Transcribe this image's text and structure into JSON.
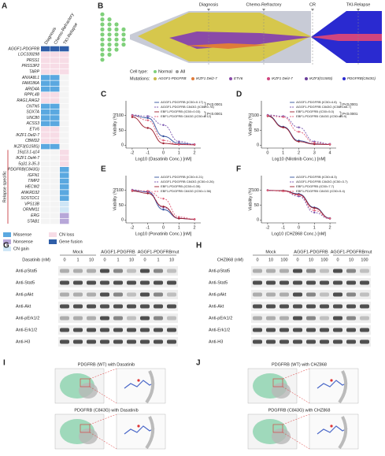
{
  "panels": {
    "A": {
      "label": "A",
      "columns": [
        "Diagnosis",
        "Chemo-Refractory",
        "TKI-Relapse"
      ],
      "rows": [
        {
          "gene": "AGGF1-PDGFRB",
          "color": "#c0272d",
          "cells": [
            4,
            4,
            4
          ]
        },
        {
          "gene": "LOC339298",
          "color": "#222222",
          "cells": [
            3,
            3,
            3
          ]
        },
        {
          "gene": "PRSS1",
          "color": "#222222",
          "cells": [
            3,
            3,
            3
          ]
        },
        {
          "gene": "PRSS3P2",
          "color": "#222222",
          "cells": [
            3,
            3,
            3
          ]
        },
        {
          "gene": "TARP",
          "color": "#222222",
          "cells": [
            3,
            3,
            3
          ]
        },
        {
          "gene": "ANXA8L1",
          "color": "#222222",
          "cells": [
            0,
            0,
            null
          ]
        },
        {
          "gene": "FAM186A",
          "color": "#222222",
          "cells": [
            0,
            0,
            null
          ]
        },
        {
          "gene": "ARID4A",
          "color": "#222222",
          "cells": [
            0,
            0,
            null
          ]
        },
        {
          "gene": "RPPL4B",
          "color": "#222222",
          "cells": [
            3,
            3,
            null
          ]
        },
        {
          "gene": "RAG1,RAG2",
          "color": "#222222",
          "cells": [
            3,
            3,
            null
          ]
        },
        {
          "gene": "CNTN5",
          "color": "#222222",
          "cells": [
            0,
            0,
            null
          ]
        },
        {
          "gene": "SOX7A",
          "color": "#222222",
          "cells": [
            0,
            0,
            null
          ]
        },
        {
          "gene": "UNC80",
          "color": "#222222",
          "cells": [
            0,
            0,
            null
          ]
        },
        {
          "gene": "ACSS3",
          "color": "#222222",
          "cells": [
            0,
            0,
            null
          ]
        },
        {
          "gene": "ETV6",
          "color": "#c0272d",
          "cells": [
            3,
            3,
            null
          ]
        },
        {
          "gene": "IKZF1 Del2-7",
          "color": "#c0272d",
          "cells": [
            3,
            3,
            null
          ]
        },
        {
          "gene": "CBWD2",
          "color": "#222222",
          "cells": [
            3,
            3,
            null
          ]
        },
        {
          "gene": "IKZF3(G158S)",
          "color": "#c0272d",
          "cells": [
            0,
            0,
            null
          ]
        },
        {
          "gene": "15q13.1-q14",
          "color": "#222222",
          "cells": [
            null,
            null,
            3
          ]
        },
        {
          "gene": "IKZF1 Del4-7",
          "color": "#c0272d",
          "cells": [
            null,
            null,
            3
          ]
        },
        {
          "gene": "5q31.3-35.3",
          "color": "#c0272d",
          "cells": [
            null,
            null,
            3
          ]
        },
        {
          "gene": "PDGFRB(C843G)",
          "color": "#c0272d",
          "cells": [
            null,
            null,
            0
          ]
        },
        {
          "gene": "IGFN1",
          "color": "#222222",
          "cells": [
            null,
            null,
            0
          ]
        },
        {
          "gene": "TIMP2",
          "color": "#222222",
          "cells": [
            null,
            null,
            0
          ]
        },
        {
          "gene": "HECW2",
          "color": "#222222",
          "cells": [
            null,
            null,
            0
          ]
        },
        {
          "gene": "ANKRD32",
          "color": "#222222",
          "cells": [
            null,
            null,
            0
          ]
        },
        {
          "gene": "SOSTDC1",
          "color": "#222222",
          "cells": [
            null,
            null,
            0
          ]
        },
        {
          "gene": "VPS13B",
          "color": "#222222",
          "cells": [
            null,
            null,
            2
          ]
        },
        {
          "gene": "ORMM11",
          "color": "#222222",
          "cells": [
            null,
            null,
            2
          ]
        },
        {
          "gene": "ERG",
          "color": "#222222",
          "cells": [
            null,
            null,
            1
          ]
        },
        {
          "gene": "STAB1",
          "color": "#222222",
          "cells": [
            null,
            null,
            1
          ]
        }
      ],
      "group_label": "Relapse specific",
      "group_start": 18,
      "legend": [
        {
          "name": "Missense",
          "color": "#5aa8e0"
        },
        {
          "name": "Nonsense",
          "color": "#b7a7d8"
        },
        {
          "name": "CN gain",
          "color": "#cfe6f6"
        },
        {
          "name": "CN loss",
          "color": "#f7dce6"
        },
        {
          "name": "Gene fusion",
          "color": "#2f5ea8"
        }
      ]
    },
    "B": {
      "label": "B",
      "stages": [
        "Diagnosis",
        "Chemo-Refractory",
        "CR",
        "TKI-Relapse"
      ],
      "cell_type_label": "Cell type:",
      "cell_types": [
        {
          "name": "Normal",
          "color": "#7fd07a"
        },
        {
          "name": "All",
          "color": "#9a9a9a"
        }
      ],
      "mutations_label": "Mutations:",
      "mutations": [
        {
          "name": "AGGF1-PDGFRB",
          "color": "#c9b84a"
        },
        {
          "name": "IKZF1 Del2-7",
          "color": "#e07b39"
        },
        {
          "name": "ETV6",
          "color": "#8a4aa8"
        },
        {
          "name": "IKZF1 Del4-7",
          "color": "#d0457e"
        },
        {
          "name": "IKZF3(G158S)",
          "color": "#6a3d9a"
        },
        {
          "name": "PDGFRB(C843G)",
          "color": "#2a2ad0"
        }
      ]
    },
    "C": {
      "label": "C",
      "xlabel": "Log10 (Dasatinib Conc.) [nM]",
      "ylabel": "Viability (%)",
      "x": [
        -2,
        -1,
        0,
        1,
        2
      ],
      "xlim": [
        -2.4,
        2.4
      ],
      "xticks": [
        -2,
        -1,
        0,
        1,
        2
      ],
      "ylim": [
        -10,
        150
      ],
      "yticks": [
        0,
        50,
        100
      ],
      "series": [
        {
          "name": "AGGF1-PDGFRB (IC50=0.17)",
          "color": "#2f4e9c",
          "dash": false,
          "values": [
            100,
            92,
            30,
            6,
            2
          ]
        },
        {
          "name": "AGGF1-PDGFRB C843G (IC50=0.78)",
          "color": "#7b58b0",
          "dash": true,
          "values": [
            102,
            98,
            68,
            12,
            3
          ]
        },
        {
          "name": "EBF1-PDGFRB (IC50=0.03)",
          "color": "#9c1c2c",
          "dash": false,
          "values": [
            95,
            58,
            6,
            2,
            1
          ]
        },
        {
          "name": "EBF1-PDGFRB C843G (IC50=0.12)",
          "color": "#e0607a",
          "dash": true,
          "values": [
            100,
            84,
            16,
            3,
            2
          ]
        }
      ],
      "pvalues": [
        "P<0.0001",
        "P<0.0001"
      ]
    },
    "D": {
      "label": "D",
      "xlabel": "Log10 (Nilotinib Conc.) [nM]",
      "ylabel": "Viability (%)",
      "x": [
        0,
        1,
        2,
        3,
        4
      ],
      "xlim": [
        -0.4,
        4.4
      ],
      "xticks": [
        0,
        1,
        2,
        3,
        4
      ],
      "ylim": [
        -10,
        150
      ],
      "yticks": [
        0,
        50,
        100
      ],
      "series": [
        {
          "name": "AGGF1-PDGFRB (IC50=4.8)",
          "color": "#2f4e9c",
          "dash": false,
          "values": [
            100,
            62,
            15,
            4,
            2
          ]
        },
        {
          "name": "AGGF1-PDGFRB C843G (IC50=168.7)",
          "color": "#7b58b0",
          "dash": true,
          "values": [
            102,
            98,
            60,
            12,
            4
          ]
        },
        {
          "name": "EBF1-PDGFRB (IC50=5.0)",
          "color": "#9c1c2c",
          "dash": false,
          "values": [
            98,
            60,
            12,
            3,
            2
          ]
        },
        {
          "name": "EBF1-PDGFRB C843G (IC50=85.9)",
          "color": "#e0607a",
          "dash": true,
          "values": [
            100,
            95,
            45,
            8,
            3
          ]
        }
      ],
      "pvalues": [
        "P<0.0001",
        "P<0.0001"
      ]
    },
    "E": {
      "label": "E",
      "xlabel": "Log10 (Ponatinib Conc.) [nM]",
      "ylabel": "Viability (%)",
      "x": [
        -2,
        -1,
        0,
        1,
        2
      ],
      "xlim": [
        -2.4,
        2.4
      ],
      "xticks": [
        -2,
        -1,
        0,
        1,
        2
      ],
      "ylim": [
        -10,
        150
      ],
      "yticks": [
        0,
        50,
        100
      ],
      "series": [
        {
          "name": "AGGF1-PDGFRB (IC50=0.21)",
          "color": "#2f4e9c",
          "dash": false,
          "values": [
            100,
            95,
            35,
            5,
            2
          ]
        },
        {
          "name": "AGGF1-PDGFRB C843G (IC50=0.26)",
          "color": "#7b58b0",
          "dash": true,
          "values": [
            102,
            96,
            42,
            6,
            2
          ]
        },
        {
          "name": "EBF1-PDGFRB (IC50=0.35)",
          "color": "#9c1c2c",
          "dash": false,
          "values": [
            98,
            90,
            45,
            5,
            2
          ]
        },
        {
          "name": "EBF1-PDGFRB C843G (IC50=1.56)",
          "color": "#e0607a",
          "dash": true,
          "values": [
            100,
            98,
            72,
            10,
            3
          ]
        }
      ]
    },
    "F": {
      "label": "F",
      "xlabel": "Log10 (CHZ868 Conc.) [nM]",
      "ylabel": "Viability (%)",
      "x": [
        -2,
        -1,
        0,
        1,
        2
      ],
      "xlim": [
        -2.4,
        2.4
      ],
      "xticks": [
        -2,
        -1,
        0,
        1,
        2
      ],
      "ylim": [
        -10,
        150
      ],
      "yticks": [
        0,
        50,
        100
      ],
      "series": [
        {
          "name": "AGGF1-PDGFRB (IC50=8.3)",
          "color": "#2f4e9c",
          "dash": false,
          "values": [
            100,
            99,
            88,
            42,
            6
          ]
        },
        {
          "name": "AGGF1-PDGFRB C843G (IC50=3.7)",
          "color": "#7b58b0",
          "dash": true,
          "values": [
            101,
            98,
            80,
            25,
            4
          ]
        },
        {
          "name": "EBF1-PDGFRB (IC50=7.7)",
          "color": "#9c1c2c",
          "dash": false,
          "values": [
            100,
            99,
            86,
            40,
            5
          ]
        },
        {
          "name": "EBF1-PDGFRB C843G (IC50=5.4)",
          "color": "#e0607a",
          "dash": true,
          "values": [
            100,
            97,
            84,
            32,
            5
          ]
        }
      ]
    },
    "G": {
      "label": "G",
      "drug": "Dasatinib (nM)",
      "groups": [
        "Mock",
        "AGGF1-PDGFRB",
        "AGGF1-PDGFRBmut"
      ],
      "doses": [
        0,
        1,
        10
      ],
      "antibodies": [
        "Anti-pStat5",
        "Anti-Stat5",
        "Anti-pAkt",
        "Anti-Akt",
        "Anti-pErk1/2",
        "Anti-Erk1/2",
        "Anti-H3"
      ]
    },
    "H": {
      "label": "H",
      "drug": "CHZ868 (nM)",
      "groups": [
        "Mock",
        "AGGF1-PDGFRB",
        "AGGF1-PDGFRBmut"
      ],
      "doses": [
        0,
        10,
        100
      ],
      "antibodies": [
        "Anti-pStat5",
        "Anti-Stat5",
        "Anti-pAkt",
        "Anti-Akt",
        "Anti-pErk1/2",
        "Anti-Erk1/2",
        "Anti-H3"
      ]
    },
    "I": {
      "label": "I",
      "titles": [
        "PDGFRB (WT) with Dasatinib",
        "PDGFRB (C843G) with Dasatinib"
      ]
    },
    "J": {
      "label": "J",
      "titles": [
        "PDGFRB (WT) with CHZ868",
        "PDGFRB (C843G) with CHZ868"
      ]
    }
  }
}
